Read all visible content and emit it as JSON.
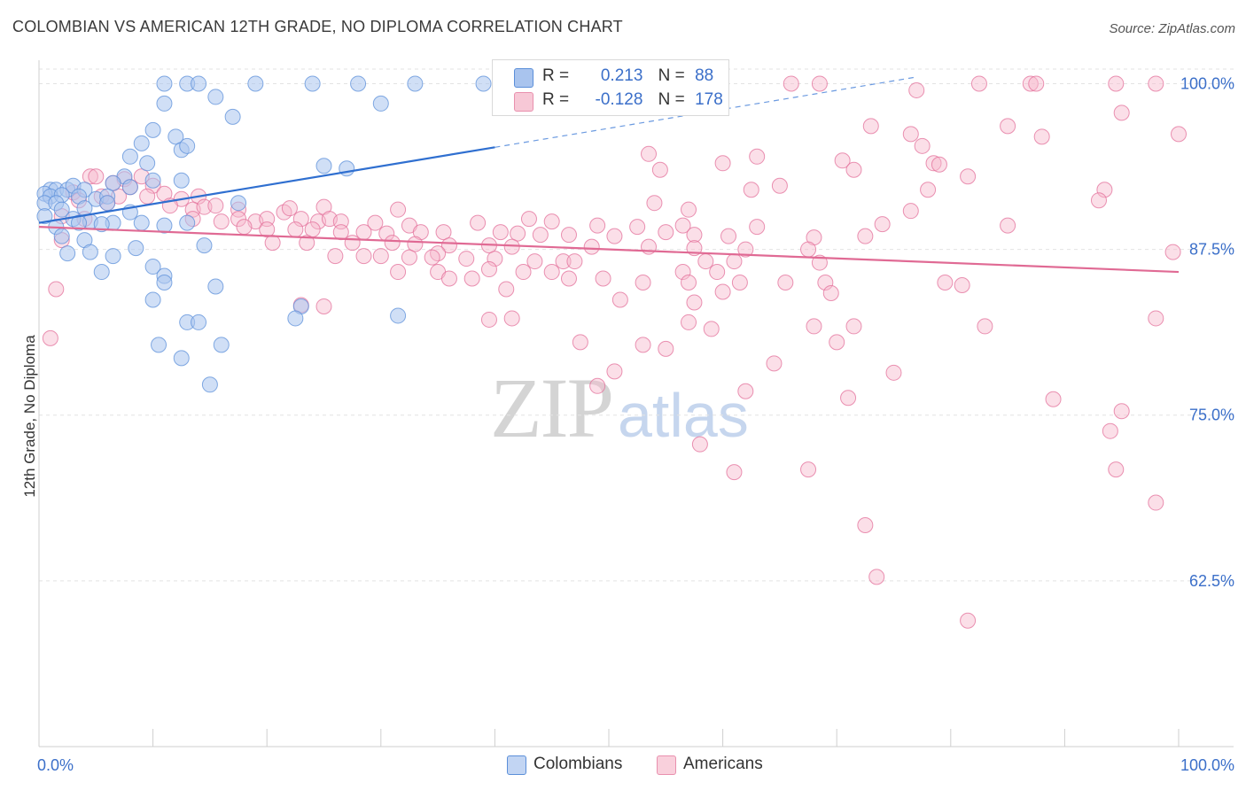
{
  "title": "COLOMBIAN VS AMERICAN 12TH GRADE, NO DIPLOMA CORRELATION CHART",
  "source": "Source: ZipAtlas.com",
  "watermark": {
    "zip": "ZIP",
    "atlas": "atlas"
  },
  "legend_top": {
    "rows": [
      {
        "r_label": "R =",
        "r_value": "0.213",
        "n_label": "N =",
        "n_value": "88",
        "color": "#a9c4ee"
      },
      {
        "r_label": "R =",
        "r_value": "-0.128",
        "n_label": "N =",
        "n_value": "178",
        "color": "#f7b9cc"
      }
    ]
  },
  "legend_bottom": [
    {
      "label": "Colombians",
      "color": "#a9c4ee"
    },
    {
      "label": "Americans",
      "color": "#f7b9cc"
    }
  ],
  "chart_data": {
    "type": "scatter",
    "title": "COLOMBIAN VS AMERICAN 12TH GRADE, NO DIPLOMA CORRELATION CHART",
    "xlabel": "",
    "ylabel": "12th Grade, No Diploma",
    "xlim": [
      0,
      100
    ],
    "ylim": [
      50,
      101.5
    ],
    "x_tick_labels": [
      "0.0%",
      "100.0%"
    ],
    "y_ticks": [
      {
        "value": 100.0,
        "label": "100.0%"
      },
      {
        "value": 87.5,
        "label": "87.5%"
      },
      {
        "value": 75.0,
        "label": "75.0%"
      },
      {
        "value": 62.5,
        "label": "62.5%"
      }
    ],
    "grid": "horizontal dashed",
    "series": [
      {
        "name": "Colombians",
        "color": "#5b8fd9",
        "fill": "#a9c4ee",
        "trend": {
          "x": [
            0,
            40,
            77
          ],
          "y": [
            89.5,
            95.2,
            100.5
          ],
          "solid_until": 40
        },
        "points": [
          [
            11,
            100
          ],
          [
            13,
            100
          ],
          [
            14,
            100
          ],
          [
            19,
            100
          ],
          [
            24,
            100
          ],
          [
            28,
            100
          ],
          [
            33,
            100
          ],
          [
            39,
            100
          ],
          [
            11,
            98.5
          ],
          [
            15.5,
            99
          ],
          [
            17,
            97.5
          ],
          [
            30,
            98.5
          ],
          [
            10,
            96.5
          ],
          [
            12,
            96
          ],
          [
            9,
            95.5
          ],
          [
            12.5,
            95
          ],
          [
            8,
            94.5
          ],
          [
            13,
            95.3
          ],
          [
            9.5,
            94
          ],
          [
            25,
            93.8
          ],
          [
            27,
            93.6
          ],
          [
            7.5,
            93
          ],
          [
            10,
            92.7
          ],
          [
            12.5,
            92.7
          ],
          [
            8,
            92.2
          ],
          [
            6.5,
            92.5
          ],
          [
            1,
            92
          ],
          [
            1.5,
            92
          ],
          [
            2.5,
            92
          ],
          [
            3,
            92.3
          ],
          [
            4,
            92
          ],
          [
            0.5,
            91.7
          ],
          [
            1,
            91.5
          ],
          [
            2,
            91.6
          ],
          [
            3.5,
            91.5
          ],
          [
            5,
            91.3
          ],
          [
            6,
            91.5
          ],
          [
            0.5,
            91
          ],
          [
            1.5,
            91
          ],
          [
            17.5,
            91
          ],
          [
            2,
            90.5
          ],
          [
            4,
            90.6
          ],
          [
            6,
            91
          ],
          [
            8,
            90.3
          ],
          [
            0.5,
            90
          ],
          [
            3,
            89.8
          ],
          [
            4.5,
            89.6
          ],
          [
            6.5,
            89.5
          ],
          [
            9,
            89.5
          ],
          [
            11,
            89.3
          ],
          [
            13,
            89.5
          ],
          [
            1.5,
            89.2
          ],
          [
            3.5,
            89.5
          ],
          [
            5.5,
            89.4
          ],
          [
            2,
            88.5
          ],
          [
            4,
            88.2
          ],
          [
            14.5,
            87.8
          ],
          [
            8.5,
            87.6
          ],
          [
            4.5,
            87.3
          ],
          [
            2.5,
            87.2
          ],
          [
            6.5,
            87
          ],
          [
            10,
            86.2
          ],
          [
            5.5,
            85.8
          ],
          [
            11,
            85.5
          ],
          [
            11,
            85
          ],
          [
            15.5,
            84.7
          ],
          [
            10,
            83.7
          ],
          [
            23,
            83.2
          ],
          [
            22.5,
            82.3
          ],
          [
            31.5,
            82.5
          ],
          [
            13,
            82
          ],
          [
            14,
            82
          ],
          [
            10.5,
            80.3
          ],
          [
            16,
            80.3
          ],
          [
            12.5,
            79.3
          ],
          [
            15,
            77.3
          ]
        ]
      },
      {
        "name": "Americans",
        "color": "#e36f99",
        "fill": "#f7b9cc",
        "trend": {
          "x": [
            0,
            100
          ],
          "y": [
            89.2,
            85.8
          ]
        },
        "points": [
          [
            66,
            100
          ],
          [
            68.5,
            100
          ],
          [
            82.5,
            100
          ],
          [
            87,
            100
          ],
          [
            87.5,
            100
          ],
          [
            94.5,
            100
          ],
          [
            98,
            100
          ],
          [
            77,
            99.5
          ],
          [
            95,
            97.8
          ],
          [
            73,
            96.8
          ],
          [
            85,
            96.8
          ],
          [
            76.5,
            96.2
          ],
          [
            88,
            96
          ],
          [
            100,
            96.2
          ],
          [
            77.5,
            95.3
          ],
          [
            53.5,
            94.7
          ],
          [
            63,
            94.5
          ],
          [
            60,
            94
          ],
          [
            70.5,
            94.2
          ],
          [
            54.5,
            93.5
          ],
          [
            71.5,
            93.5
          ],
          [
            78.5,
            94
          ],
          [
            79,
            93.9
          ],
          [
            81.5,
            93
          ],
          [
            4.5,
            93
          ],
          [
            5,
            93
          ],
          [
            7.5,
            92.8
          ],
          [
            9,
            93
          ],
          [
            6.5,
            92.5
          ],
          [
            8,
            92.2
          ],
          [
            10,
            92.3
          ],
          [
            65,
            92.3
          ],
          [
            62.5,
            92
          ],
          [
            78,
            92
          ],
          [
            93.5,
            92
          ],
          [
            3,
            91.8
          ],
          [
            5.5,
            91.5
          ],
          [
            7,
            91.5
          ],
          [
            9.5,
            91.5
          ],
          [
            11,
            91.7
          ],
          [
            12.5,
            91.3
          ],
          [
            14,
            91.5
          ],
          [
            93,
            91.2
          ],
          [
            3.5,
            91.2
          ],
          [
            6,
            91
          ],
          [
            11.5,
            90.8
          ],
          [
            13.5,
            90.5
          ],
          [
            14.5,
            90.7
          ],
          [
            15.5,
            90.8
          ],
          [
            17.5,
            90.5
          ],
          [
            21.5,
            90.3
          ],
          [
            22,
            90.6
          ],
          [
            25,
            90.7
          ],
          [
            31.5,
            90.5
          ],
          [
            54,
            91
          ],
          [
            57,
            90.5
          ],
          [
            76.5,
            90.4
          ],
          [
            2,
            90
          ],
          [
            4,
            89.8
          ],
          [
            13.5,
            89.8
          ],
          [
            16,
            89.6
          ],
          [
            17.5,
            89.8
          ],
          [
            19,
            89.6
          ],
          [
            20,
            89.8
          ],
          [
            23,
            89.8
          ],
          [
            24.5,
            89.6
          ],
          [
            25.5,
            89.8
          ],
          [
            26.5,
            89.6
          ],
          [
            29.5,
            89.5
          ],
          [
            32.5,
            89.3
          ],
          [
            38.5,
            89.5
          ],
          [
            43,
            89.8
          ],
          [
            45,
            89.6
          ],
          [
            49,
            89.3
          ],
          [
            52.5,
            89.2
          ],
          [
            56.5,
            89.3
          ],
          [
            63,
            89.2
          ],
          [
            74,
            89.4
          ],
          [
            85,
            89.3
          ],
          [
            18,
            89.2
          ],
          [
            20,
            89
          ],
          [
            22.5,
            89
          ],
          [
            24,
            89
          ],
          [
            26.5,
            88.8
          ],
          [
            28.5,
            88.8
          ],
          [
            30.5,
            88.7
          ],
          [
            33.5,
            88.8
          ],
          [
            35.5,
            88.8
          ],
          [
            40.5,
            88.8
          ],
          [
            42,
            88.7
          ],
          [
            44,
            88.6
          ],
          [
            46.5,
            88.6
          ],
          [
            50.5,
            88.5
          ],
          [
            55,
            88.8
          ],
          [
            57.5,
            88.6
          ],
          [
            60.5,
            88.5
          ],
          [
            68,
            88.4
          ],
          [
            72.5,
            88.5
          ],
          [
            2,
            88.2
          ],
          [
            20.5,
            88
          ],
          [
            23.5,
            88
          ],
          [
            27.5,
            88
          ],
          [
            31,
            88
          ],
          [
            33,
            87.9
          ],
          [
            36,
            87.8
          ],
          [
            39.5,
            87.8
          ],
          [
            41.5,
            87.7
          ],
          [
            48.5,
            87.7
          ],
          [
            53.5,
            87.7
          ],
          [
            57.5,
            87.6
          ],
          [
            62,
            87.5
          ],
          [
            67.5,
            87.5
          ],
          [
            99.5,
            87.3
          ],
          [
            35,
            87.2
          ],
          [
            26,
            87
          ],
          [
            28.5,
            87
          ],
          [
            30,
            87
          ],
          [
            32.5,
            86.9
          ],
          [
            34.5,
            86.9
          ],
          [
            37.5,
            86.8
          ],
          [
            40,
            86.8
          ],
          [
            43.5,
            86.6
          ],
          [
            46,
            86.6
          ],
          [
            47,
            86.6
          ],
          [
            58.5,
            86.6
          ],
          [
            61,
            86.6
          ],
          [
            68.5,
            86.5
          ],
          [
            39.5,
            86
          ],
          [
            31.5,
            85.8
          ],
          [
            35,
            85.8
          ],
          [
            42.5,
            85.8
          ],
          [
            45,
            85.8
          ],
          [
            56.5,
            85.8
          ],
          [
            59.5,
            85.8
          ],
          [
            36,
            85.3
          ],
          [
            38,
            85.3
          ],
          [
            46.5,
            85.3
          ],
          [
            49.5,
            85.3
          ],
          [
            53,
            85
          ],
          [
            57,
            85
          ],
          [
            61.5,
            85
          ],
          [
            65.5,
            85
          ],
          [
            69,
            85
          ],
          [
            79.5,
            85
          ],
          [
            81,
            84.8
          ],
          [
            1.5,
            84.5
          ],
          [
            41,
            84.5
          ],
          [
            60,
            84.3
          ],
          [
            69.5,
            84.2
          ],
          [
            51,
            83.7
          ],
          [
            57.5,
            83.5
          ],
          [
            23,
            83.3
          ],
          [
            25,
            83.2
          ],
          [
            41.5,
            82.3
          ],
          [
            39.5,
            82.2
          ],
          [
            57,
            82
          ],
          [
            68,
            81.7
          ],
          [
            71.5,
            81.7
          ],
          [
            83,
            81.7
          ],
          [
            98,
            82.3
          ],
          [
            59,
            81.5
          ],
          [
            1,
            80.8
          ],
          [
            47.5,
            80.5
          ],
          [
            70,
            80.5
          ],
          [
            53,
            80.3
          ],
          [
            55,
            80
          ],
          [
            64.5,
            78.9
          ],
          [
            50.5,
            78.3
          ],
          [
            75,
            78.2
          ],
          [
            49,
            77.2
          ],
          [
            62,
            76.8
          ],
          [
            71,
            76.3
          ],
          [
            89,
            76.2
          ],
          [
            95,
            75.3
          ],
          [
            94,
            73.8
          ],
          [
            58,
            72.8
          ],
          [
            94.5,
            70.9
          ],
          [
            67.5,
            70.9
          ],
          [
            61,
            70.7
          ],
          [
            98,
            68.4
          ],
          [
            72.5,
            66.7
          ],
          [
            73.5,
            62.8
          ],
          [
            81.5,
            59.5
          ]
        ]
      }
    ]
  }
}
